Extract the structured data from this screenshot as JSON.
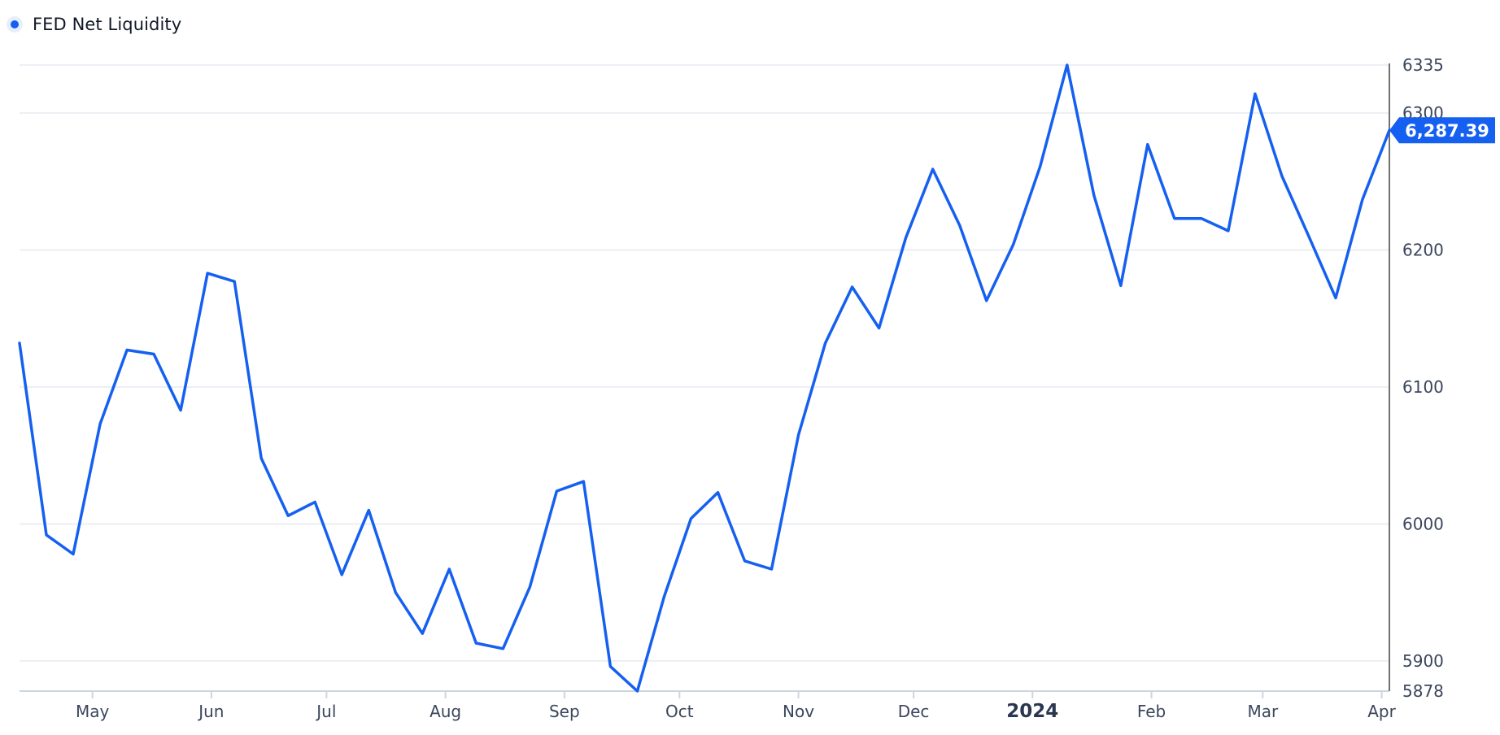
{
  "chart_data": {
    "type": "line",
    "series": [
      {
        "name": "FED Net Liquidity",
        "color": "#1560f0",
        "points": [
          [
            "2023-04-12",
            6132
          ],
          [
            "2023-04-19",
            5992
          ],
          [
            "2023-04-26",
            5978
          ],
          [
            "2023-05-03",
            6073
          ],
          [
            "2023-05-10",
            6127
          ],
          [
            "2023-05-17",
            6124
          ],
          [
            "2023-05-24",
            6083
          ],
          [
            "2023-05-31",
            6183
          ],
          [
            "2023-06-07",
            6177
          ],
          [
            "2023-06-14",
            6048
          ],
          [
            "2023-06-21",
            6006
          ],
          [
            "2023-06-28",
            6016
          ],
          [
            "2023-07-05",
            5963
          ],
          [
            "2023-07-12",
            6010
          ],
          [
            "2023-07-19",
            5950
          ],
          [
            "2023-07-26",
            5920
          ],
          [
            "2023-08-02",
            5967
          ],
          [
            "2023-08-09",
            5913
          ],
          [
            "2023-08-16",
            5909
          ],
          [
            "2023-08-23",
            5954
          ],
          [
            "2023-08-30",
            6024
          ],
          [
            "2023-09-06",
            6031
          ],
          [
            "2023-09-13",
            5896
          ],
          [
            "2023-09-20",
            5878
          ],
          [
            "2023-09-27",
            5947
          ],
          [
            "2023-10-04",
            6004
          ],
          [
            "2023-10-11",
            6023
          ],
          [
            "2023-10-18",
            5973
          ],
          [
            "2023-10-25",
            5967
          ],
          [
            "2023-11-01",
            6065
          ],
          [
            "2023-11-08",
            6132
          ],
          [
            "2023-11-15",
            6173
          ],
          [
            "2023-11-22",
            6143
          ],
          [
            "2023-11-29",
            6209
          ],
          [
            "2023-12-06",
            6259
          ],
          [
            "2023-12-13",
            6218
          ],
          [
            "2023-12-20",
            6163
          ],
          [
            "2023-12-27",
            6204
          ],
          [
            "2024-01-03",
            6261
          ],
          [
            "2024-01-10",
            6335
          ],
          [
            "2024-01-17",
            6240
          ],
          [
            "2024-01-24",
            6174
          ],
          [
            "2024-01-31",
            6277
          ],
          [
            "2024-02-07",
            6223
          ],
          [
            "2024-02-14",
            6223
          ],
          [
            "2024-02-21",
            6214
          ],
          [
            "2024-02-28",
            6314
          ],
          [
            "2024-03-06",
            6254
          ],
          [
            "2024-03-13",
            6210
          ],
          [
            "2024-03-20",
            6165
          ],
          [
            "2024-03-27",
            6237
          ],
          [
            "2024-04-03",
            6287.39
          ]
        ]
      }
    ],
    "x_ticks": [
      {
        "label": "May",
        "date": "2023-05-01"
      },
      {
        "label": "Jun",
        "date": "2023-06-01"
      },
      {
        "label": "Jul",
        "date": "2023-07-01"
      },
      {
        "label": "Aug",
        "date": "2023-08-01"
      },
      {
        "label": "Sep",
        "date": "2023-09-01"
      },
      {
        "label": "Oct",
        "date": "2023-10-01"
      },
      {
        "label": "Nov",
        "date": "2023-11-01"
      },
      {
        "label": "Dec",
        "date": "2023-12-01"
      },
      {
        "label": "2024",
        "date": "2024-01-01",
        "bold": true
      },
      {
        "label": "Feb",
        "date": "2024-02-01"
      },
      {
        "label": "Mar",
        "date": "2024-03-01"
      },
      {
        "label": "Apr",
        "date": "2024-04-01"
      }
    ],
    "y_ticks": [
      5878,
      5900,
      6000,
      6100,
      6200,
      6300,
      6335
    ],
    "y_gridlines": [
      5900,
      6000,
      6100,
      6200,
      6300,
      6335
    ],
    "ylim": [
      5878,
      6335
    ],
    "xlim": [
      "2023-04-12",
      "2024-04-03"
    ],
    "y_axis_position": "right",
    "legend_position": "top-left",
    "grid": true,
    "last_value_label": "6,287.39",
    "colors": {
      "line": "#1560f0",
      "grid": "#e6eaf0",
      "axis_bottom": "#cdd5e0",
      "axis_right": "#707070",
      "tick_text": "#3b465c",
      "bold_tick_text": "#2b3650",
      "label_bg": "#1560f0",
      "label_text": "#ffffff"
    }
  }
}
